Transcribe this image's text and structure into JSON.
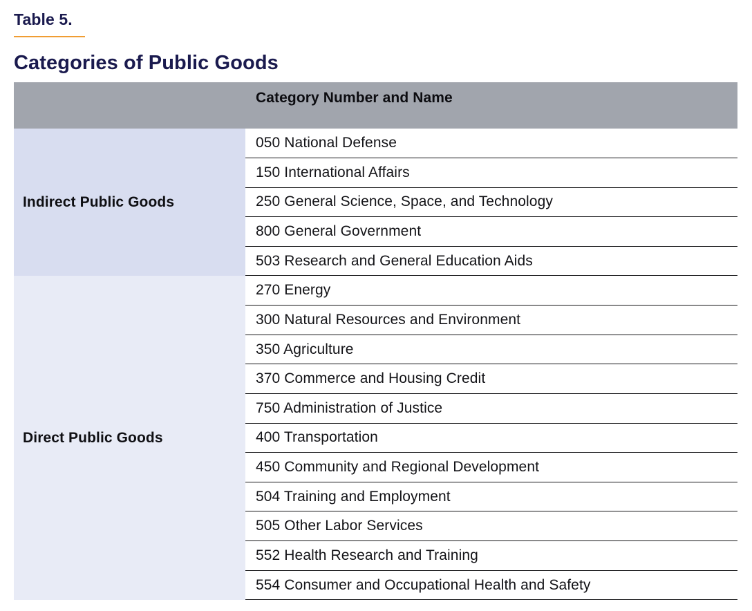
{
  "doc": {
    "table_number": "Table 5.",
    "title": "Categories of Public Goods"
  },
  "table": {
    "header": "Category Number and Name",
    "groups": [
      {
        "label": "Indirect Public Goods",
        "items": [
          "050 National Defense",
          "150 International Affairs",
          "250 General Science, Space, and Technology",
          "800 General Government",
          "503 Research and General Education Aids"
        ]
      },
      {
        "label": "Direct Public Goods",
        "items": [
          "270 Energy",
          "300 Natural Resources and Environment",
          "350 Agriculture",
          "370 Commerce and Housing Credit",
          "750 Administration of Justice",
          "400 Transportation",
          "450 Community and Regional Development",
          "504 Training and Employment",
          "505 Other Labor Services",
          "552 Health Research and Training",
          "554 Consumer and Occupational Health and Safety"
        ]
      }
    ]
  },
  "colors": {
    "accent_orange": "#f09d33",
    "heading_navy": "#1a1a4e",
    "header_gray": "#a1a5ad",
    "indirect_group_bg": "#d8ddf0",
    "direct_group_bg": "#e8ebf6"
  }
}
